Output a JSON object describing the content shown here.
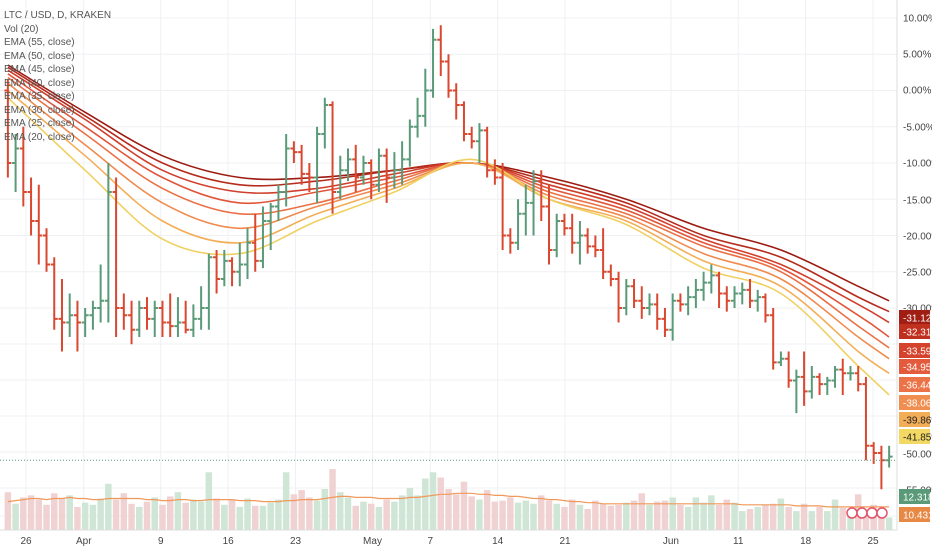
{
  "legend": {
    "title": "LTC / USD, D, KRAKEN",
    "lines": [
      "Vol (20)",
      "EMA (55, close)",
      "EMA (50, close)",
      "EMA (45, close)",
      "EMA (40, close)",
      "EMA (35, close)",
      "EMA (30, close)",
      "EMA (25, close)",
      "EMA (20, close)"
    ]
  },
  "colors": {
    "up": "#5a9a78",
    "down": "#d9482f",
    "vol_up": "#cfe5d6",
    "vol_down": "#f1d2d3",
    "vol_ma": "#f0995a",
    "grid": "#eef0f3",
    "ema": [
      "#9b1b10",
      "#b62b1c",
      "#cf3f2b",
      "#e0563b",
      "#ea7045",
      "#f08a4e",
      "#f3ad56",
      "#f0d060"
    ]
  },
  "chart_data": {
    "type": "candlestick",
    "symbol": "LTC / USD, D, KRAKEN",
    "y_axis": {
      "scale": "percent",
      "ticks": [
        "10.00%",
        "5.00%",
        "0.00%",
        "-5.00%",
        "-10.00%",
        "-15.00%",
        "-20.00%",
        "-25.00%",
        "-30.00%",
        "-50.00%",
        "-55.00%"
      ],
      "tick_values": [
        10,
        5,
        0,
        -5,
        -10,
        -15,
        -20,
        -25,
        -30,
        -50,
        -55
      ],
      "ylim": [
        -57,
        12
      ]
    },
    "x_axis": {
      "ticks": [
        "26",
        "Apr",
        "9",
        "16",
        "23",
        "May",
        "7",
        "14",
        "21",
        "Jun",
        "11",
        "18",
        "25"
      ],
      "tick_days": [
        0,
        6,
        14,
        21,
        28,
        36,
        42,
        49,
        56,
        67,
        74,
        81,
        88
      ]
    },
    "candles": [
      {
        "o": 0,
        "h": 1.5,
        "l": -12,
        "c": -10
      },
      {
        "o": -10,
        "h": -6,
        "l": -14,
        "c": -8
      },
      {
        "o": -8,
        "h": -5,
        "l": -16,
        "c": -14
      },
      {
        "o": -14,
        "h": -12,
        "l": -20,
        "c": -18
      },
      {
        "o": -18,
        "h": -13,
        "l": -24,
        "c": -20
      },
      {
        "o": -20,
        "h": -19,
        "l": -25,
        "c": -24
      },
      {
        "o": -24,
        "h": -23,
        "l": -33,
        "c": -31.5
      },
      {
        "o": -31.5,
        "h": -26,
        "l": -36,
        "c": -32
      },
      {
        "o": -32,
        "h": -28,
        "l": -34,
        "c": -31
      },
      {
        "o": -31,
        "h": -29,
        "l": -36,
        "c": -32
      },
      {
        "o": -32,
        "h": -30,
        "l": -34,
        "c": -31
      },
      {
        "o": -31,
        "h": -29,
        "l": -33,
        "c": -30
      },
      {
        "o": -30,
        "h": -24,
        "l": -32,
        "c": -29
      },
      {
        "o": -29,
        "h": -10,
        "l": -32,
        "c": -14
      },
      {
        "o": -14,
        "h": -12,
        "l": -34,
        "c": -30
      },
      {
        "o": -30,
        "h": -28,
        "l": -33,
        "c": -31
      },
      {
        "o": -31,
        "h": -29,
        "l": -35,
        "c": -33
      },
      {
        "o": -33,
        "h": -29,
        "l": -34,
        "c": -30
      },
      {
        "o": -30,
        "h": -28.5,
        "l": -33,
        "c": -31.5
      },
      {
        "o": -31.5,
        "h": -29,
        "l": -34,
        "c": -30
      },
      {
        "o": -30,
        "h": -29,
        "l": -34,
        "c": -32
      },
      {
        "o": -32,
        "h": -28,
        "l": -34,
        "c": -32.5
      },
      {
        "o": -32.5,
        "h": -28.5,
        "l": -34,
        "c": -32
      },
      {
        "o": -32,
        "h": -29,
        "l": -33.5,
        "c": -33
      },
      {
        "o": -33,
        "h": -29.5,
        "l": -34,
        "c": -31.5
      },
      {
        "o": -31.5,
        "h": -27,
        "l": -33,
        "c": -30
      },
      {
        "o": -30,
        "h": -22.5,
        "l": -33,
        "c": -23
      },
      {
        "o": -23,
        "h": -22,
        "l": -28,
        "c": -26
      },
      {
        "o": -26,
        "h": -22,
        "l": -27,
        "c": -23.5
      },
      {
        "o": -23.5,
        "h": -23,
        "l": -27,
        "c": -25
      },
      {
        "o": -25,
        "h": -21,
        "l": -27,
        "c": -24
      },
      {
        "o": -24,
        "h": -19,
        "l": -26,
        "c": -21
      },
      {
        "o": -21,
        "h": -17,
        "l": -25,
        "c": -23.5
      },
      {
        "o": -23.5,
        "h": -16,
        "l": -24.5,
        "c": -18
      },
      {
        "o": -18,
        "h": -15.5,
        "l": -22,
        "c": -16
      },
      {
        "o": -16,
        "h": -13,
        "l": -18,
        "c": -14
      },
      {
        "o": -14,
        "h": -6,
        "l": -16,
        "c": -8
      },
      {
        "o": -8,
        "h": -7,
        "l": -10,
        "c": -8.5
      },
      {
        "o": -8.5,
        "h": -7.5,
        "l": -13,
        "c": -11.5
      },
      {
        "o": -11.5,
        "h": -10,
        "l": -14,
        "c": -12
      },
      {
        "o": -12,
        "h": -5,
        "l": -15.5,
        "c": -6
      },
      {
        "o": -6,
        "h": -1,
        "l": -8,
        "c": -2
      },
      {
        "o": -2,
        "h": -1.5,
        "l": -17,
        "c": -14
      },
      {
        "o": -14,
        "h": -9,
        "l": -15,
        "c": -11
      },
      {
        "o": -11,
        "h": -8,
        "l": -12.5,
        "c": -9.5
      },
      {
        "o": -9.5,
        "h": -7.5,
        "l": -14,
        "c": -12
      },
      {
        "o": -12,
        "h": -9,
        "l": -13,
        "c": -10
      },
      {
        "o": -10,
        "h": -9.5,
        "l": -15,
        "c": -13
      },
      {
        "o": -13,
        "h": -8,
        "l": -14,
        "c": -9
      },
      {
        "o": -9,
        "h": -8,
        "l": -15.5,
        "c": -12
      },
      {
        "o": -12,
        "h": -8.5,
        "l": -13.5,
        "c": -11
      },
      {
        "o": -11,
        "h": -7,
        "l": -13,
        "c": -9.5
      },
      {
        "o": -9.5,
        "h": -4,
        "l": -10.5,
        "c": -5
      },
      {
        "o": -5,
        "h": -1,
        "l": -6.5,
        "c": -3.5
      },
      {
        "o": -3.5,
        "h": 3,
        "l": -5,
        "c": 0
      },
      {
        "o": 0,
        "h": 8.5,
        "l": -1,
        "c": 7
      },
      {
        "o": 7,
        "h": 9,
        "l": 2,
        "c": 4
      },
      {
        "o": 4,
        "h": 5,
        "l": -1,
        "c": 0
      },
      {
        "o": 0,
        "h": 1,
        "l": -4,
        "c": -2
      },
      {
        "o": -2,
        "h": -1.5,
        "l": -7,
        "c": -6
      },
      {
        "o": -6,
        "h": -5,
        "l": -8,
        "c": -7
      },
      {
        "o": -7,
        "h": -4.5,
        "l": -10,
        "c": -5.5
      },
      {
        "o": -5.5,
        "h": -5,
        "l": -12,
        "c": -11
      },
      {
        "o": -11,
        "h": -9.5,
        "l": -13,
        "c": -12
      },
      {
        "o": -12,
        "h": -10,
        "l": -22,
        "c": -20
      },
      {
        "o": -20,
        "h": -19,
        "l": -22.5,
        "c": -21
      },
      {
        "o": -21,
        "h": -15,
        "l": -22,
        "c": -17
      },
      {
        "o": -17,
        "h": -13,
        "l": -20,
        "c": -15.5
      },
      {
        "o": -15.5,
        "h": -11,
        "l": -20,
        "c": -12.5
      },
      {
        "o": -12.5,
        "h": -11,
        "l": -18,
        "c": -16
      },
      {
        "o": -16,
        "h": -13,
        "l": -24,
        "c": -22
      },
      {
        "o": -22,
        "h": -17,
        "l": -23,
        "c": -18
      },
      {
        "o": -18,
        "h": -17,
        "l": -20,
        "c": -19
      },
      {
        "o": -19,
        "h": -17,
        "l": -22.5,
        "c": -21
      },
      {
        "o": -21,
        "h": -18,
        "l": -24,
        "c": -20
      },
      {
        "o": -20,
        "h": -19,
        "l": -22.5,
        "c": -21.5
      },
      {
        "o": -21.5,
        "h": -20,
        "l": -23,
        "c": -22
      },
      {
        "o": -22,
        "h": -19,
        "l": -26,
        "c": -25
      },
      {
        "o": -25,
        "h": -24,
        "l": -27,
        "c": -26
      },
      {
        "o": -26,
        "h": -25,
        "l": -32,
        "c": -30
      },
      {
        "o": -30,
        "h": -26,
        "l": -31,
        "c": -27
      },
      {
        "o": -27,
        "h": -26,
        "l": -30,
        "c": -29
      },
      {
        "o": -29,
        "h": -27,
        "l": -31.5,
        "c": -30
      },
      {
        "o": -30,
        "h": -28,
        "l": -31,
        "c": -29.5
      },
      {
        "o": -29.5,
        "h": -28,
        "l": -33,
        "c": -31.5
      },
      {
        "o": -31.5,
        "h": -30,
        "l": -34,
        "c": -33
      },
      {
        "o": -33,
        "h": -28,
        "l": -34.5,
        "c": -29
      },
      {
        "o": -29,
        "h": -28,
        "l": -30.5,
        "c": -29.5
      },
      {
        "o": -29.5,
        "h": -27,
        "l": -31,
        "c": -28.5
      },
      {
        "o": -28.5,
        "h": -26,
        "l": -30,
        "c": -27.5
      },
      {
        "o": -27.5,
        "h": -25,
        "l": -29,
        "c": -26.5
      },
      {
        "o": -26.5,
        "h": -24,
        "l": -28,
        "c": -25.5
      },
      {
        "o": -25.5,
        "h": -25,
        "l": -30,
        "c": -28
      },
      {
        "o": -28,
        "h": -27,
        "l": -30.5,
        "c": -29
      },
      {
        "o": -29,
        "h": -27,
        "l": -30,
        "c": -28
      },
      {
        "o": -28,
        "h": -26.5,
        "l": -29.5,
        "c": -27.5
      },
      {
        "o": -27.5,
        "h": -26,
        "l": -30,
        "c": -29
      },
      {
        "o": -29,
        "h": -27.5,
        "l": -30.5,
        "c": -28.5
      },
      {
        "o": -28.5,
        "h": -28,
        "l": -32,
        "c": -31
      },
      {
        "o": -31,
        "h": -30,
        "l": -38.5,
        "c": -37.5
      },
      {
        "o": -37.5,
        "h": -36,
        "l": -38,
        "c": -37
      },
      {
        "o": -37,
        "h": -36,
        "l": -41,
        "c": -40
      },
      {
        "o": -40,
        "h": -38.5,
        "l": -44.5,
        "c": -39.5
      },
      {
        "o": -39.5,
        "h": -36,
        "l": -43.5,
        "c": -41.5
      },
      {
        "o": -41.5,
        "h": -38,
        "l": -42.5,
        "c": -39.5
      },
      {
        "o": -39.5,
        "h": -39,
        "l": -42,
        "c": -40.5
      },
      {
        "o": -40.5,
        "h": -39.5,
        "l": -42,
        "c": -40
      },
      {
        "o": -40,
        "h": -38,
        "l": -41,
        "c": -38.5
      },
      {
        "o": -38.5,
        "h": -37,
        "l": -42,
        "c": -39
      },
      {
        "o": -39,
        "h": -38,
        "l": -40,
        "c": -39
      },
      {
        "o": -39,
        "h": -38,
        "l": -41.5,
        "c": -40.5
      },
      {
        "o": -40.5,
        "h": -39.5,
        "l": -51,
        "c": -49
      },
      {
        "o": -49,
        "h": -48.5,
        "l": -51.5,
        "c": -50
      },
      {
        "o": -50,
        "h": -49,
        "l": -55,
        "c": -51
      },
      {
        "o": -51,
        "h": -49,
        "l": -52,
        "c": -50.5
      }
    ],
    "ema": [
      {
        "name": "EMA (55, close)",
        "color": "#9b1b10",
        "x": [
          0,
          10,
          20,
          30,
          40,
          50,
          60,
          70,
          80,
          90,
          100,
          110,
          114
        ],
        "y": [
          3.5,
          -3,
          -9,
          -12,
          -12,
          -11,
          -10,
          -12,
          -15,
          -19,
          -22,
          -27,
          -29
        ]
      },
      {
        "name": "EMA (50, close)",
        "color": "#b62b1c",
        "x": [
          0,
          10,
          20,
          30,
          40,
          50,
          60,
          70,
          80,
          90,
          100,
          110,
          114
        ],
        "y": [
          3.2,
          -3.5,
          -10,
          -13,
          -12.5,
          -11,
          -10,
          -12.5,
          -15.5,
          -20,
          -23,
          -28.5,
          -30.5
        ]
      },
      {
        "name": "EMA (45, close)",
        "color": "#cf3f2b",
        "x": [
          0,
          10,
          20,
          30,
          40,
          50,
          60,
          70,
          80,
          90,
          100,
          110,
          114
        ],
        "y": [
          2.8,
          -4,
          -11,
          -14,
          -13.5,
          -11.5,
          -10,
          -13,
          -16,
          -20.5,
          -24,
          -29.5,
          -32
        ]
      },
      {
        "name": "EMA (40, close)",
        "color": "#e0563b",
        "x": [
          0,
          10,
          20,
          30,
          40,
          50,
          60,
          70,
          80,
          90,
          100,
          110,
          114
        ],
        "y": [
          2.3,
          -5,
          -12,
          -15.5,
          -14,
          -12,
          -10,
          -13.5,
          -16.5,
          -21,
          -24.5,
          -31,
          -34
        ]
      },
      {
        "name": "EMA (35, close)",
        "color": "#ea7045",
        "x": [
          0,
          10,
          20,
          30,
          40,
          50,
          60,
          70,
          80,
          90,
          100,
          110,
          114
        ],
        "y": [
          1.8,
          -6,
          -13.5,
          -17,
          -15.5,
          -12.5,
          -10,
          -14,
          -17,
          -21.5,
          -25,
          -32.5,
          -35.5
        ]
      },
      {
        "name": "EMA (30, close)",
        "color": "#f08a4e",
        "x": [
          0,
          10,
          20,
          30,
          40,
          50,
          60,
          70,
          80,
          90,
          100,
          110,
          114
        ],
        "y": [
          1,
          -7.5,
          -15.5,
          -19,
          -16,
          -13,
          -10,
          -14.5,
          -17.5,
          -22.5,
          -26,
          -34,
          -37
        ]
      },
      {
        "name": "EMA (25, close)",
        "color": "#f3ad56",
        "x": [
          0,
          10,
          20,
          30,
          40,
          50,
          60,
          70,
          80,
          90,
          100,
          110,
          114
        ],
        "y": [
          0,
          -9,
          -18,
          -21,
          -17,
          -13.5,
          -10,
          -15,
          -18,
          -23.5,
          -27,
          -36,
          -39
        ]
      },
      {
        "name": "EMA (20, close)",
        "color": "#f0d060",
        "x": [
          0,
          10,
          20,
          30,
          40,
          50,
          60,
          70,
          80,
          90,
          100,
          110,
          114
        ],
        "y": [
          -1,
          -11,
          -20.5,
          -22.5,
          -18,
          -14,
          -9.5,
          -15,
          -18.5,
          -24.5,
          -28,
          -38,
          -42
        ]
      }
    ],
    "volume": [
      0.36,
      0.25,
      0.31,
      0.33,
      0.29,
      0.24,
      0.35,
      0.3,
      0.33,
      0.22,
      0.26,
      0.24,
      0.3,
      0.44,
      0.29,
      0.35,
      0.25,
      0.22,
      0.27,
      0.31,
      0.24,
      0.32,
      0.36,
      0.26,
      0.29,
      0.27,
      0.55,
      0.3,
      0.24,
      0.29,
      0.22,
      0.3,
      0.23,
      0.23,
      0.26,
      0.29,
      0.55,
      0.34,
      0.38,
      0.31,
      0.28,
      0.39,
      0.58,
      0.36,
      0.31,
      0.23,
      0.27,
      0.25,
      0.22,
      0.29,
      0.27,
      0.33,
      0.4,
      0.33,
      0.49,
      0.55,
      0.5,
      0.39,
      0.34,
      0.46,
      0.32,
      0.29,
      0.38,
      0.27,
      0.28,
      0.31,
      0.26,
      0.28,
      0.25,
      0.33,
      0.28,
      0.25,
      0.22,
      0.29,
      0.24,
      0.2,
      0.28,
      0.25,
      0.23,
      0.24,
      0.26,
      0.28,
      0.35,
      0.24,
      0.27,
      0.28,
      0.31,
      0.24,
      0.22,
      0.31,
      0.26,
      0.33,
      0.24,
      0.29,
      0.26,
      0.18,
      0.2,
      0.22,
      0.24,
      0.25,
      0.3,
      0.22,
      0.18,
      0.25,
      0.18,
      0.22,
      0.18,
      0.29,
      0.21,
      0.15,
      0.34,
      0.18,
      0.24,
      0.15,
      0.12
    ],
    "volume_ma": [
      0.27,
      0.28,
      0.29,
      0.3,
      0.3,
      0.29,
      0.3,
      0.3,
      0.31,
      0.3,
      0.3,
      0.29,
      0.29,
      0.3,
      0.3,
      0.3,
      0.3,
      0.3,
      0.29,
      0.29,
      0.28,
      0.28,
      0.29,
      0.29,
      0.28,
      0.28,
      0.29,
      0.29,
      0.29,
      0.29,
      0.28,
      0.28,
      0.28,
      0.27,
      0.27,
      0.27,
      0.28,
      0.28,
      0.29,
      0.29,
      0.29,
      0.3,
      0.31,
      0.32,
      0.32,
      0.31,
      0.31,
      0.31,
      0.3,
      0.3,
      0.3,
      0.3,
      0.31,
      0.31,
      0.32,
      0.33,
      0.34,
      0.34,
      0.35,
      0.35,
      0.35,
      0.34,
      0.34,
      0.33,
      0.33,
      0.32,
      0.32,
      0.31,
      0.3,
      0.3,
      0.29,
      0.29,
      0.28,
      0.27,
      0.27,
      0.26,
      0.26,
      0.25,
      0.25,
      0.25,
      0.25,
      0.25,
      0.25,
      0.25,
      0.25,
      0.25,
      0.25,
      0.25,
      0.25,
      0.25,
      0.25,
      0.25,
      0.25,
      0.25,
      0.25,
      0.24,
      0.24,
      0.24,
      0.24,
      0.24,
      0.24,
      0.24,
      0.23,
      0.23,
      0.23,
      0.23,
      0.22,
      0.22,
      0.22,
      0.22,
      0.22,
      0.22,
      0.22,
      0.22,
      0.22
    ],
    "price_line": {
      "value": -51
    },
    "right_badges": [
      {
        "label": "-31.12%",
        "color": "#a01e14"
      },
      {
        "label": "-32.31%",
        "color": "#c0301f"
      },
      {
        "label": "-33.59%",
        "color": "#d6432d"
      },
      {
        "label": "-34.95%",
        "color": "#e45a3d"
      },
      {
        "label": "-36.44%",
        "color": "#ec7347"
      },
      {
        "label": "-38.06%",
        "color": "#f08d50"
      },
      {
        "label": "-39.86%",
        "color": "#f3ad57"
      },
      {
        "label": "-41.85%",
        "color": "#f3d864"
      }
    ],
    "volume_badges": [
      {
        "label": "12.318K",
        "color": "#5a9a78"
      },
      {
        "label": "10.431K",
        "color": "#e88845"
      }
    ]
  }
}
